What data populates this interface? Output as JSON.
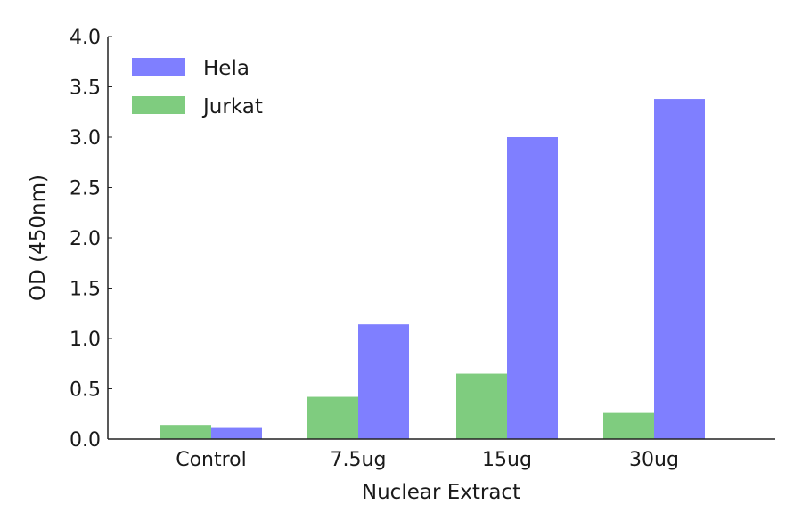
{
  "chart_data": {
    "type": "bar",
    "title": "",
    "xlabel": "Nuclear Extract",
    "ylabel": "OD (450nm)",
    "categories": [
      "Control",
      "7.5ug",
      "15ug",
      "30ug"
    ],
    "series": [
      {
        "name": "Jurkat",
        "color": "#7fcc7f",
        "values": [
          0.14,
          0.42,
          0.65,
          0.26
        ]
      },
      {
        "name": "Hela",
        "color": "#7f7fff",
        "values": [
          0.11,
          1.14,
          3.0,
          3.38
        ]
      }
    ],
    "ylim": [
      0,
      4.0
    ],
    "yticks": [
      "0.0",
      "0.5",
      "1.0",
      "1.5",
      "2.0",
      "2.5",
      "3.0",
      "3.5",
      "4.0"
    ],
    "grid": false,
    "legend": {
      "position": "upper left",
      "entries": [
        {
          "label": "Hela",
          "color": "#7f7fff"
        },
        {
          "label": "Jurkat",
          "color": "#7fcc7f"
        }
      ]
    }
  }
}
